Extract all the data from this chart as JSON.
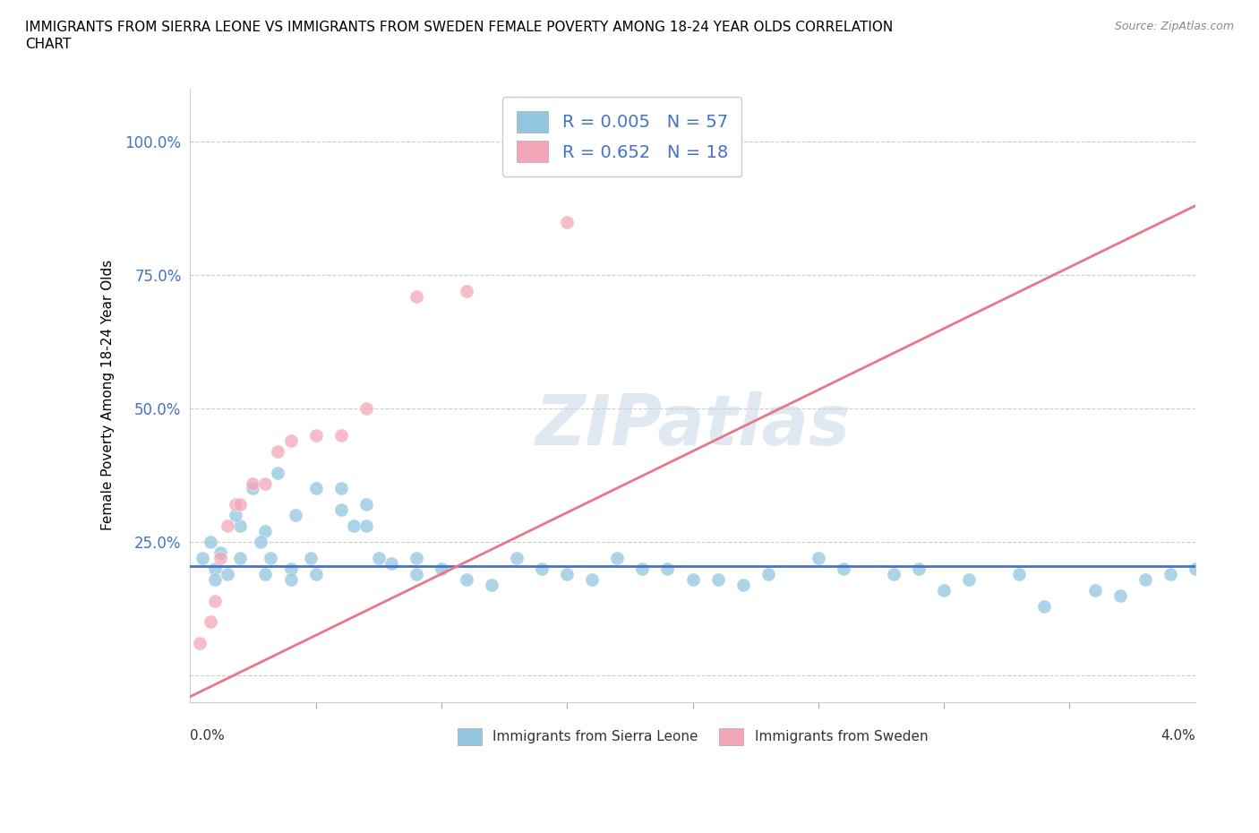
{
  "title": "IMMIGRANTS FROM SIERRA LEONE VS IMMIGRANTS FROM SWEDEN FEMALE POVERTY AMONG 18-24 YEAR OLDS CORRELATION\nCHART",
  "source": "Source: ZipAtlas.com",
  "ylabel": "Female Poverty Among 18-24 Year Olds",
  "yticks": [
    0.0,
    0.25,
    0.5,
    0.75,
    1.0
  ],
  "ytick_labels": [
    "",
    "25.0%",
    "50.0%",
    "75.0%",
    "100.0%"
  ],
  "xlim": [
    0.0,
    0.04
  ],
  "ylim": [
    -0.05,
    1.1
  ],
  "color_sierra": "#92C5DE",
  "color_sweden": "#F4A6B8",
  "trendline_sierra_color": "#4472C4",
  "trendline_sweden_color": "#E8768A",
  "watermark": "ZIPatlas",
  "sierra_x": [
    0.0005,
    0.001,
    0.0008,
    0.001,
    0.0012,
    0.0015,
    0.002,
    0.002,
    0.0018,
    0.0025,
    0.003,
    0.003,
    0.0032,
    0.0028,
    0.0035,
    0.004,
    0.004,
    0.0042,
    0.005,
    0.005,
    0.0048,
    0.006,
    0.006,
    0.0065,
    0.007,
    0.007,
    0.0075,
    0.008,
    0.009,
    0.009,
    0.01,
    0.011,
    0.012,
    0.013,
    0.014,
    0.015,
    0.016,
    0.017,
    0.018,
    0.019,
    0.02,
    0.021,
    0.022,
    0.023,
    0.025,
    0.026,
    0.028,
    0.029,
    0.03,
    0.031,
    0.033,
    0.034,
    0.036,
    0.037,
    0.038,
    0.039,
    0.04
  ],
  "sierra_y": [
    0.22,
    0.2,
    0.25,
    0.18,
    0.23,
    0.19,
    0.28,
    0.22,
    0.3,
    0.35,
    0.27,
    0.19,
    0.22,
    0.25,
    0.38,
    0.2,
    0.18,
    0.3,
    0.35,
    0.19,
    0.22,
    0.35,
    0.31,
    0.28,
    0.28,
    0.32,
    0.22,
    0.21,
    0.19,
    0.22,
    0.2,
    0.18,
    0.17,
    0.22,
    0.2,
    0.19,
    0.18,
    0.22,
    0.2,
    0.2,
    0.18,
    0.18,
    0.17,
    0.19,
    0.22,
    0.2,
    0.19,
    0.2,
    0.16,
    0.18,
    0.19,
    0.13,
    0.16,
    0.15,
    0.18,
    0.19,
    0.2
  ],
  "sweden_x": [
    0.0004,
    0.0008,
    0.001,
    0.0012,
    0.0015,
    0.0018,
    0.002,
    0.0025,
    0.003,
    0.0035,
    0.004,
    0.005,
    0.006,
    0.007,
    0.009,
    0.011,
    0.013,
    0.015
  ],
  "sweden_y": [
    0.06,
    0.1,
    0.14,
    0.22,
    0.28,
    0.32,
    0.32,
    0.36,
    0.36,
    0.42,
    0.44,
    0.45,
    0.45,
    0.5,
    0.71,
    0.72,
    1.0,
    0.85
  ],
  "sweden_trendline_x0": 0.0,
  "sweden_trendline_y0": -0.04,
  "sweden_trendline_x1": 0.04,
  "sweden_trendline_y1": 0.88,
  "sierra_trendline_y": 0.205
}
